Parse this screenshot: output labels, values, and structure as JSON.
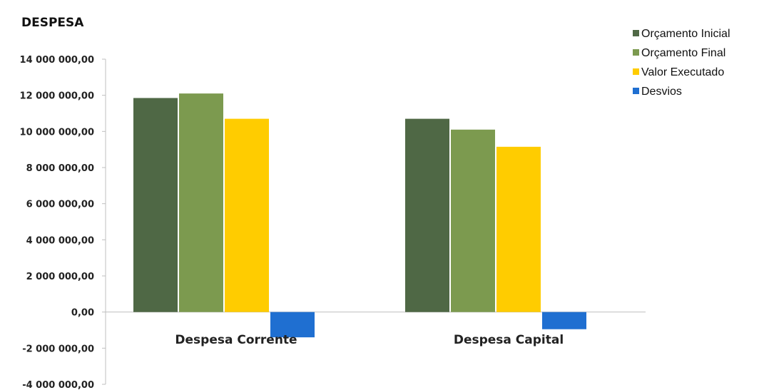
{
  "chart_data": {
    "type": "bar",
    "title": "DESPESA",
    "categories": [
      "Despesa Corrente",
      "Despesa Capital"
    ],
    "series": [
      {
        "name": "Orçamento Inicial",
        "color": "#4f6845",
        "values": [
          11850000,
          10700000
        ]
      },
      {
        "name": "Orçamento Final",
        "color": "#7c9a4f",
        "values": [
          12100000,
          10100000
        ]
      },
      {
        "name": "Valor  Executado",
        "color": "#ffcc00",
        "values": [
          10700000,
          9150000
        ]
      },
      {
        "name": "Desvios",
        "color": "#1f6fd1",
        "values": [
          -1400000,
          -950000
        ]
      }
    ],
    "ylim": [
      -4000000,
      14000000
    ],
    "yticks": [
      14000000,
      12000000,
      10000000,
      8000000,
      6000000,
      4000000,
      2000000,
      0,
      -2000000,
      -4000000
    ],
    "ytick_labels": [
      "14 000 000,00",
      "12 000 000,00",
      "10 000 000,00",
      "8 000 000,00",
      "6 000 000,00",
      "4 000 000,00",
      "2 000 000,00",
      "0,00",
      "-2 000 000,00",
      "-4 000 000,00"
    ],
    "legend_position": "top-right",
    "grid": false
  }
}
